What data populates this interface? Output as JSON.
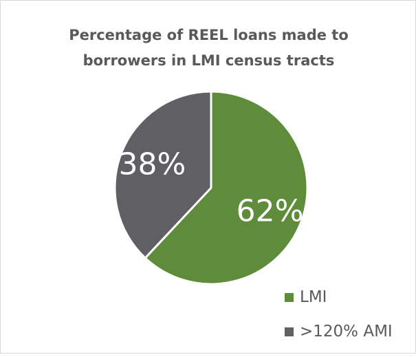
{
  "chart_data": {
    "type": "pie",
    "title_lines": [
      "Percentage of REEL loans made to",
      "borrowers in LMI census tracts"
    ],
    "slices": [
      {
        "name": "LMI",
        "value": 62,
        "label": "62%",
        "color": "#5f8c3a"
      },
      {
        "name": ">120% AMI",
        "value": 38,
        "label": "38%",
        "color": "#5f5f64"
      }
    ],
    "legend": {
      "position": "bottom-right",
      "entries": [
        "LMI",
        ">120% AMI"
      ]
    },
    "label_color": "#ffffff",
    "slice_border_color": "#ffffff"
  }
}
